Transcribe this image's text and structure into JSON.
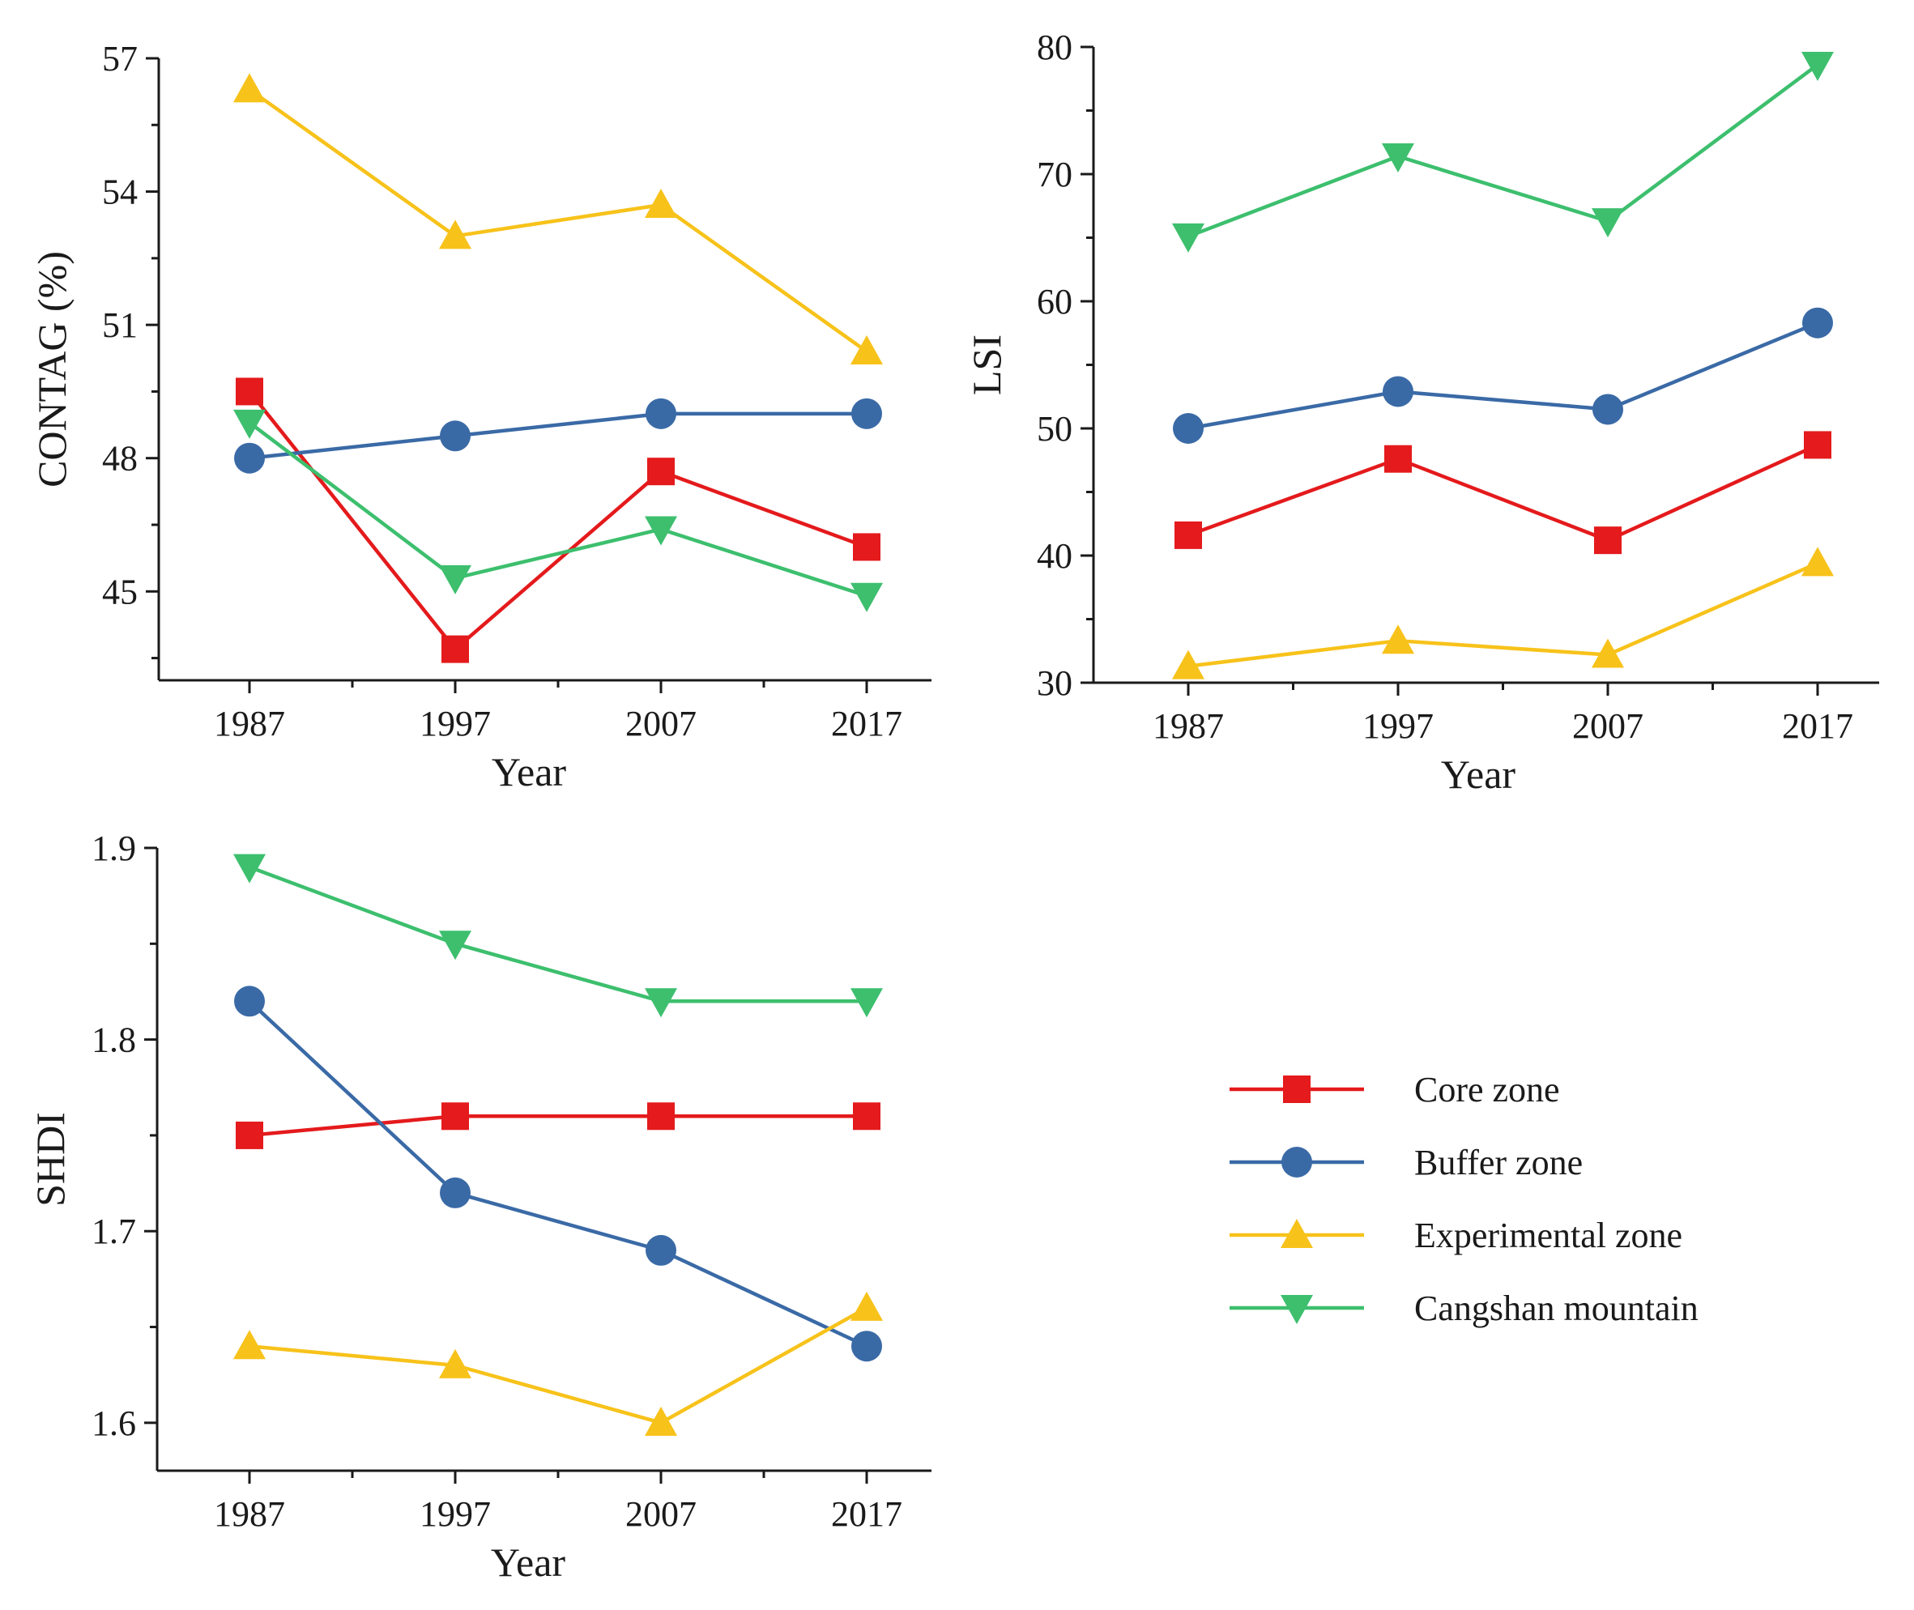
{
  "series_styles": [
    {
      "key": "core",
      "color": "#e41a1c",
      "marker": "square"
    },
    {
      "key": "buffer",
      "color": "#3a6aa6",
      "marker": "circle"
    },
    {
      "key": "experimental",
      "color": "#f7c21a",
      "marker": "triangle-up"
    },
    {
      "key": "cangshan",
      "color": "#3dbf6e",
      "marker": "triangle-down"
    }
  ],
  "legend": {
    "entries": [
      "Core zone",
      "Buffer zone",
      "Experimental zone",
      "Cangshan mountain"
    ]
  },
  "chart_data": [
    {
      "id": "contag",
      "type": "line",
      "title": "",
      "xlabel": "Year",
      "ylabel": "CONTAG (%)",
      "categories": [
        "1987",
        "1997",
        "2007",
        "2017"
      ],
      "ylim": [
        43,
        57
      ],
      "yticks": [
        45,
        48,
        51,
        54,
        57
      ],
      "ytick_labels": [
        "45",
        "48",
        "51",
        "54",
        "57"
      ],
      "series": [
        {
          "name": "Core zone",
          "values": [
            49.5,
            43.7,
            47.7,
            46.0
          ]
        },
        {
          "name": "Buffer zone",
          "values": [
            48.0,
            48.5,
            49.0,
            49.0
          ]
        },
        {
          "name": "Experimental zone",
          "values": [
            56.3,
            53.0,
            53.7,
            50.4
          ]
        },
        {
          "name": "Cangshan mountain",
          "values": [
            48.8,
            45.3,
            46.4,
            44.9
          ]
        }
      ]
    },
    {
      "id": "lsi",
      "type": "line",
      "title": "",
      "xlabel": "Year",
      "ylabel": "LSI",
      "categories": [
        "1987",
        "1997",
        "2007",
        "2017"
      ],
      "ylim": [
        30,
        80
      ],
      "yticks": [
        30,
        40,
        50,
        60,
        70,
        80
      ],
      "ytick_labels": [
        "30",
        "40",
        "50",
        "60",
        "70",
        "80"
      ],
      "series": [
        {
          "name": "Core zone",
          "values": [
            41.6,
            47.6,
            41.2,
            48.7
          ]
        },
        {
          "name": "Buffer zone",
          "values": [
            50.0,
            52.9,
            51.5,
            58.3
          ]
        },
        {
          "name": "Experimental zone",
          "values": [
            31.3,
            33.3,
            32.2,
            39.4
          ]
        },
        {
          "name": "Cangshan mountain",
          "values": [
            65.1,
            71.4,
            66.3,
            78.6
          ]
        }
      ]
    },
    {
      "id": "shdi",
      "type": "line",
      "title": "",
      "xlabel": "Year",
      "ylabel": "SHDI",
      "categories": [
        "1987",
        "1997",
        "2007",
        "2017"
      ],
      "ylim": [
        1.575,
        1.9
      ],
      "yticks": [
        1.6,
        1.7,
        1.8,
        1.9
      ],
      "ytick_labels": [
        "1.6",
        "1.7",
        "1.8",
        "1.9"
      ],
      "series": [
        {
          "name": "Core zone",
          "values": [
            1.75,
            1.76,
            1.76,
            1.76
          ]
        },
        {
          "name": "Buffer zone",
          "values": [
            1.82,
            1.72,
            1.69,
            1.64
          ]
        },
        {
          "name": "Experimental zone",
          "values": [
            1.64,
            1.63,
            1.6,
            1.66
          ]
        },
        {
          "name": "Cangshan mountain",
          "values": [
            1.89,
            1.85,
            1.82,
            1.82
          ]
        }
      ]
    }
  ]
}
